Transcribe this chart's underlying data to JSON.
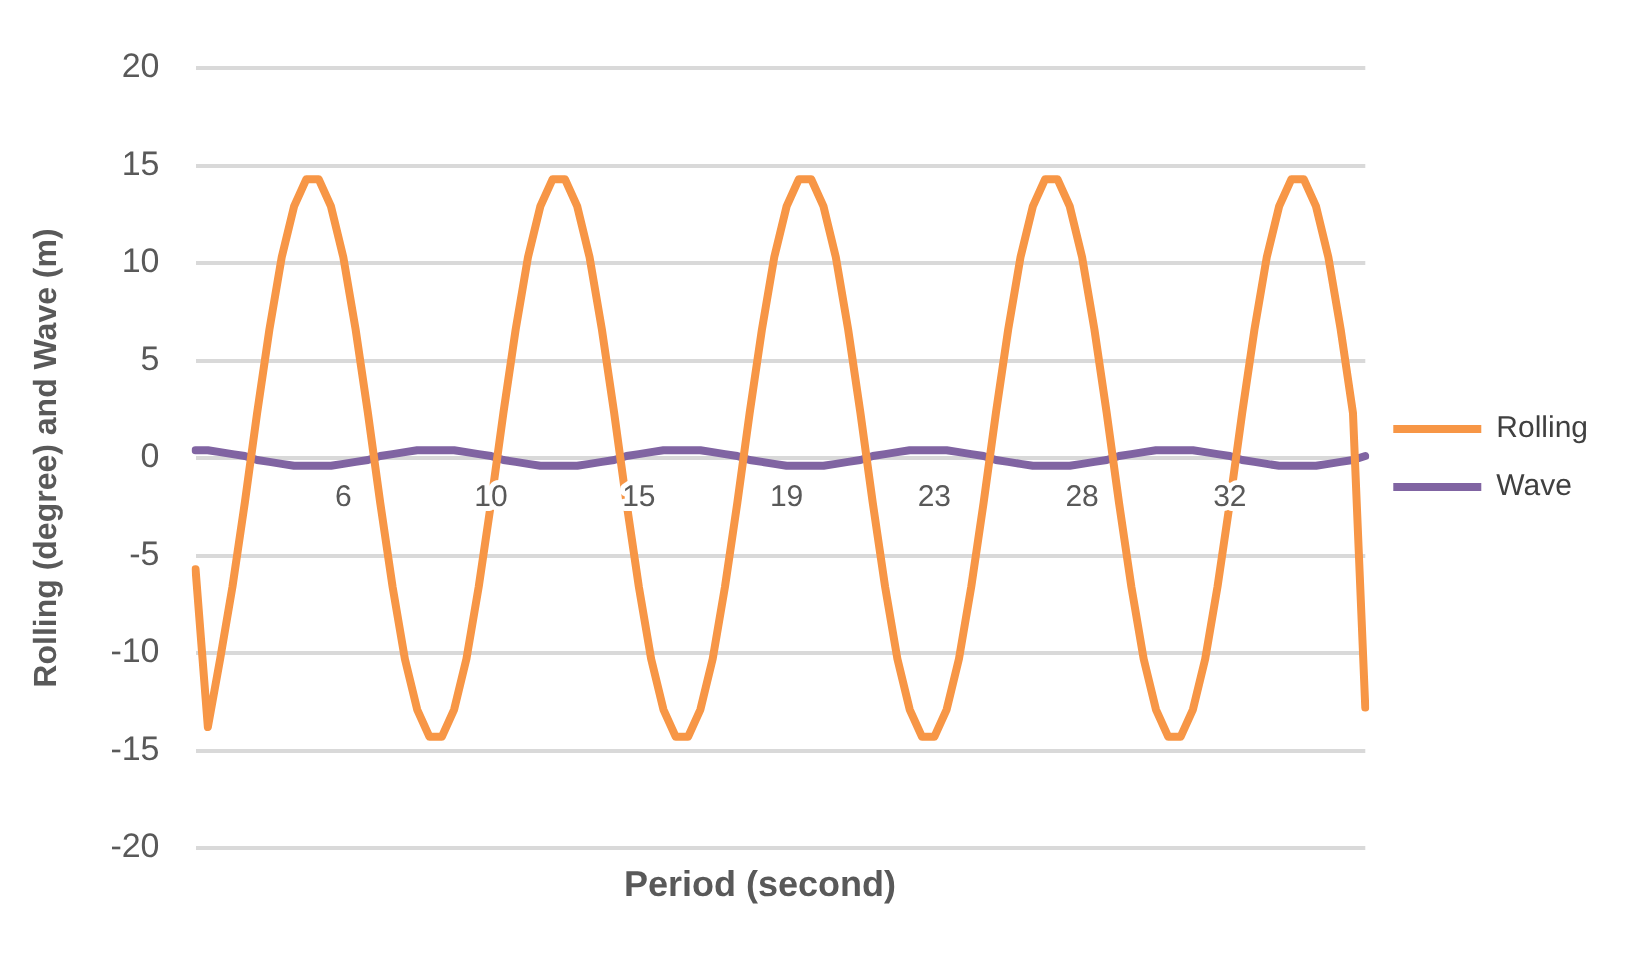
{
  "chart_data": {
    "type": "line",
    "xlabel": "Period (second)",
    "ylabel": "Rolling (degree) and Wave (m)",
    "categories": [
      null,
      null,
      null,
      null,
      null,
      null,
      null,
      null,
      null,
      null,
      null,
      null,
      "6",
      null,
      null,
      null,
      null,
      null,
      null,
      null,
      null,
      null,
      null,
      null,
      "10",
      null,
      null,
      null,
      null,
      null,
      null,
      null,
      null,
      null,
      null,
      null,
      "15",
      null,
      null,
      null,
      null,
      null,
      null,
      null,
      null,
      null,
      null,
      null,
      "19",
      null,
      null,
      null,
      null,
      null,
      null,
      null,
      null,
      null,
      null,
      null,
      "23",
      null,
      null,
      null,
      null,
      null,
      null,
      null,
      null,
      null,
      null,
      null,
      "28",
      null,
      null,
      null,
      null,
      null,
      null,
      null,
      null,
      null,
      null,
      null,
      "32",
      null,
      null,
      null,
      null,
      null,
      null,
      null,
      null,
      null,
      null,
      null
    ],
    "series": [
      {
        "name": "Rolling",
        "color": "#f79646",
        "values": [
          -5.7,
          -13.8,
          -10.3,
          -6.6,
          -2.3,
          2.3,
          6.6,
          10.3,
          12.9,
          14.3,
          14.3,
          12.9,
          10.3,
          6.6,
          2.3,
          -2.3,
          -6.6,
          -10.3,
          -12.9,
          -14.3,
          -14.3,
          -12.9,
          -10.3,
          -6.6,
          -2.3,
          2.3,
          6.6,
          10.3,
          12.9,
          14.3,
          14.3,
          12.9,
          10.3,
          6.6,
          2.3,
          -2.3,
          -6.6,
          -10.3,
          -12.9,
          -14.3,
          -14.3,
          -12.9,
          -10.3,
          -6.6,
          -2.3,
          2.3,
          6.6,
          10.3,
          12.9,
          14.3,
          14.3,
          12.9,
          10.3,
          6.6,
          2.3,
          -2.3,
          -6.6,
          -10.3,
          -12.9,
          -14.3,
          -14.3,
          -12.9,
          -10.3,
          -6.6,
          -2.3,
          2.3,
          6.6,
          10.3,
          12.9,
          14.3,
          14.3,
          12.9,
          10.3,
          6.6,
          2.3,
          -2.3,
          -6.6,
          -10.3,
          -12.9,
          -14.3,
          -14.3,
          -12.9,
          -10.3,
          -6.6,
          -2.3,
          2.3,
          6.6,
          10.3,
          12.9,
          14.3,
          14.3,
          12.9,
          10.3,
          6.6,
          2.3,
          -12.8
        ]
      },
      {
        "name": "Wave",
        "color": "#8064a2",
        "values": [
          0.4,
          0.4,
          0.3,
          0.2,
          0.1,
          -0.1,
          -0.2,
          -0.3,
          -0.4,
          -0.4,
          -0.4,
          -0.4,
          -0.3,
          -0.2,
          -0.1,
          0.1,
          0.2,
          0.3,
          0.4,
          0.4,
          0.4,
          0.4,
          0.3,
          0.2,
          0.1,
          -0.1,
          -0.2,
          -0.3,
          -0.4,
          -0.4,
          -0.4,
          -0.4,
          -0.3,
          -0.2,
          -0.1,
          0.1,
          0.2,
          0.3,
          0.4,
          0.4,
          0.4,
          0.4,
          0.3,
          0.2,
          0.1,
          -0.1,
          -0.2,
          -0.3,
          -0.4,
          -0.4,
          -0.4,
          -0.4,
          -0.3,
          -0.2,
          -0.1,
          0.1,
          0.2,
          0.3,
          0.4,
          0.4,
          0.4,
          0.4,
          0.3,
          0.2,
          0.1,
          -0.1,
          -0.2,
          -0.3,
          -0.4,
          -0.4,
          -0.4,
          -0.4,
          -0.3,
          -0.2,
          -0.1,
          0.1,
          0.2,
          0.3,
          0.4,
          0.4,
          0.4,
          0.4,
          0.3,
          0.2,
          0.1,
          -0.1,
          -0.2,
          -0.3,
          -0.4,
          -0.4,
          -0.4,
          -0.4,
          -0.3,
          -0.2,
          -0.1,
          0.1
        ]
      }
    ],
    "ylim": [
      -20,
      20
    ],
    "yticks": [
      -20,
      -15,
      -10,
      -5,
      0,
      5,
      10,
      15,
      20
    ],
    "grid": "y",
    "legend": "right",
    "marker": "none",
    "line_style": "solid"
  }
}
